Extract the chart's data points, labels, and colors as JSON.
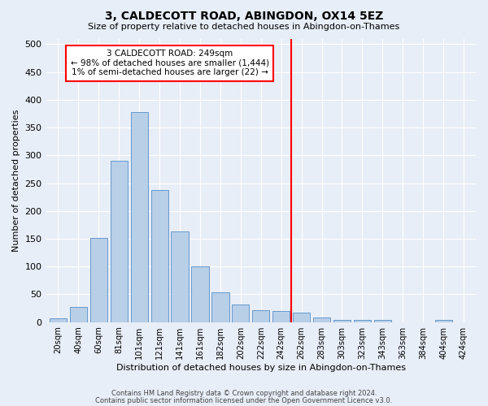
{
  "title": "3, CALDECOTT ROAD, ABINGDON, OX14 5EZ",
  "subtitle": "Size of property relative to detached houses in Abingdon-on-Thames",
  "xlabel": "Distribution of detached houses by size in Abingdon-on-Thames",
  "ylabel": "Number of detached properties",
  "categories": [
    "20sqm",
    "40sqm",
    "60sqm",
    "81sqm",
    "101sqm",
    "121sqm",
    "141sqm",
    "161sqm",
    "182sqm",
    "202sqm",
    "222sqm",
    "242sqm",
    "262sqm",
    "283sqm",
    "303sqm",
    "323sqm",
    "343sqm",
    "363sqm",
    "384sqm",
    "404sqm",
    "424sqm"
  ],
  "values": [
    7,
    28,
    152,
    290,
    378,
    237,
    163,
    100,
    53,
    31,
    21,
    20,
    17,
    9,
    4,
    4,
    4,
    0,
    0,
    4,
    0
  ],
  "bar_color": "#b8cfe8",
  "bar_edge_color": "#6699cc",
  "vline_color": "red",
  "annotation_title": "3 CALDECOTT ROAD: 249sqm",
  "annotation_line2": "← 98% of detached houses are smaller (1,444)",
  "annotation_line3": "1% of semi-detached houses are larger (22) →",
  "annotation_box_color": "white",
  "annotation_box_edge_color": "red",
  "ylim": [
    0,
    510
  ],
  "yticks": [
    0,
    50,
    100,
    150,
    200,
    250,
    300,
    350,
    400,
    450,
    500
  ],
  "background_color": "#e8eef7",
  "footer_line1": "Contains HM Land Registry data © Crown copyright and database right 2024.",
  "footer_line2": "Contains public sector information licensed under the Open Government Licence v3.0."
}
